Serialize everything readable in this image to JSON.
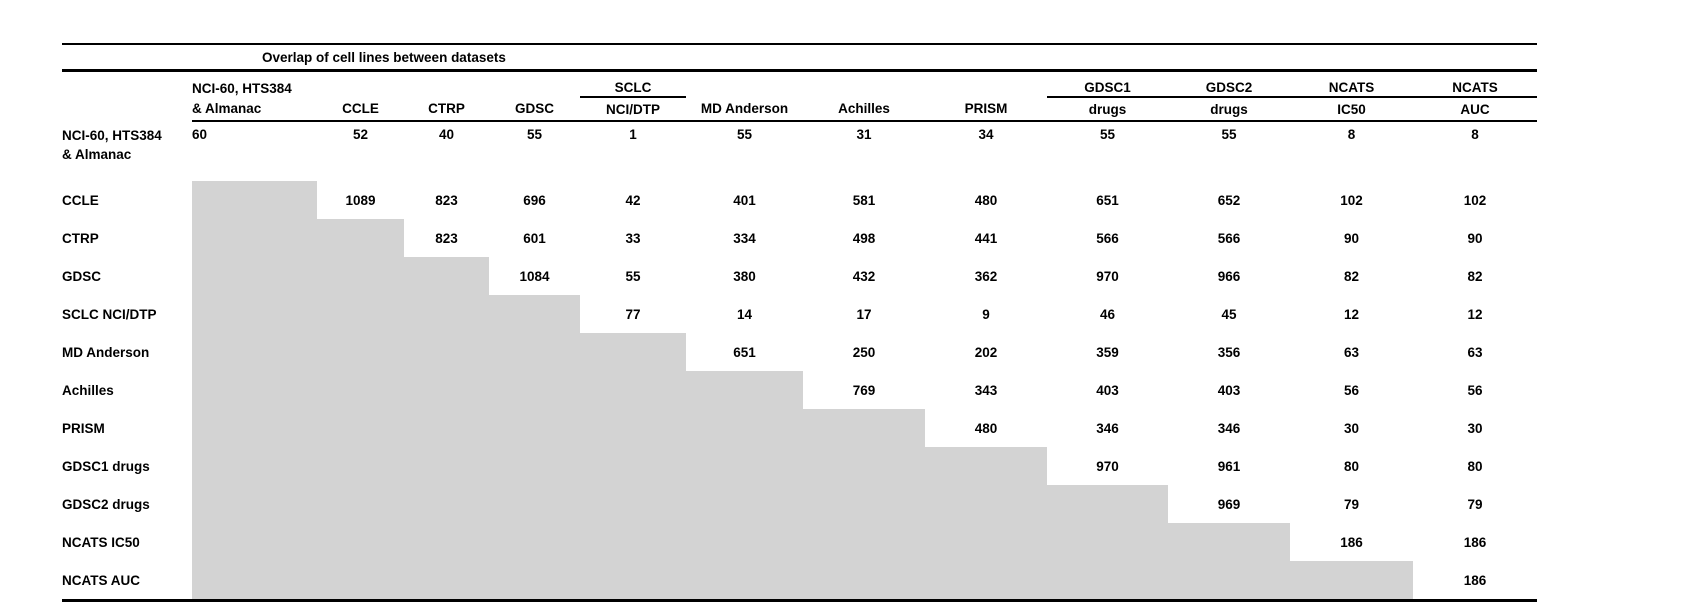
{
  "table": {
    "title": "Overlap of cell lines between datasets",
    "shade_color": "#d3d3d3",
    "columns": [
      {
        "line1": "NCI-60, HTS384",
        "line2": "& Almanac",
        "underline": false
      },
      {
        "line1": "",
        "line2": "CCLE",
        "underline": false
      },
      {
        "line1": "",
        "line2": "CTRP",
        "underline": false
      },
      {
        "line1": "",
        "line2": "GDSC",
        "underline": false
      },
      {
        "line1": "SCLC",
        "line2": "NCI/DTP",
        "underline": true
      },
      {
        "line1": "",
        "line2": "MD Anderson",
        "underline": false
      },
      {
        "line1": "",
        "line2": "Achilles",
        "underline": false
      },
      {
        "line1": "",
        "line2": "PRISM",
        "underline": false
      },
      {
        "line1": "GDSC1",
        "line2": "drugs",
        "underline": true
      },
      {
        "line1": "GDSC2",
        "line2": "drugs",
        "underline": true
      },
      {
        "line1": "NCATS",
        "line2": "IC50",
        "underline": true
      },
      {
        "line1": "NCATS",
        "line2": "AUC",
        "underline": true
      }
    ],
    "rows": [
      {
        "label": "NCI-60, HTS384 & Almanac",
        "label_lines": [
          "NCI-60, HTS384",
          "& Almanac"
        ],
        "values": [
          "60",
          "52",
          "40",
          "55",
          "1",
          "55",
          "31",
          "34",
          "55",
          "55",
          "8",
          "8"
        ]
      },
      {
        "label": "CCLE",
        "values": [
          null,
          "1089",
          "823",
          "696",
          "42",
          "401",
          "581",
          "480",
          "651",
          "652",
          "102",
          "102"
        ]
      },
      {
        "label": "CTRP",
        "values": [
          null,
          null,
          "823",
          "601",
          "33",
          "334",
          "498",
          "441",
          "566",
          "566",
          "90",
          "90"
        ]
      },
      {
        "label": "GDSC",
        "values": [
          null,
          null,
          null,
          "1084",
          "55",
          "380",
          "432",
          "362",
          "970",
          "966",
          "82",
          "82"
        ]
      },
      {
        "label": "SCLC NCI/DTP",
        "values": [
          null,
          null,
          null,
          null,
          "77",
          "14",
          "17",
          "9",
          "46",
          "45",
          "12",
          "12"
        ]
      },
      {
        "label": "MD Anderson",
        "values": [
          null,
          null,
          null,
          null,
          null,
          "651",
          "250",
          "202",
          "359",
          "356",
          "63",
          "63"
        ]
      },
      {
        "label": "Achilles",
        "values": [
          null,
          null,
          null,
          null,
          null,
          null,
          "769",
          "343",
          "403",
          "403",
          "56",
          "56"
        ]
      },
      {
        "label": "PRISM",
        "values": [
          null,
          null,
          null,
          null,
          null,
          null,
          null,
          "480",
          "346",
          "346",
          "30",
          "30"
        ]
      },
      {
        "label": "GDSC1 drugs",
        "values": [
          null,
          null,
          null,
          null,
          null,
          null,
          null,
          null,
          "970",
          "961",
          "80",
          "80"
        ]
      },
      {
        "label": "GDSC2 drugs",
        "values": [
          null,
          null,
          null,
          null,
          null,
          null,
          null,
          null,
          null,
          "969",
          "79",
          "79"
        ]
      },
      {
        "label": "NCATS IC50",
        "values": [
          null,
          null,
          null,
          null,
          null,
          null,
          null,
          null,
          null,
          null,
          "186",
          "186"
        ]
      },
      {
        "label": "NCATS AUC",
        "values": [
          null,
          null,
          null,
          null,
          null,
          null,
          null,
          null,
          null,
          null,
          null,
          "186"
        ]
      }
    ]
  }
}
